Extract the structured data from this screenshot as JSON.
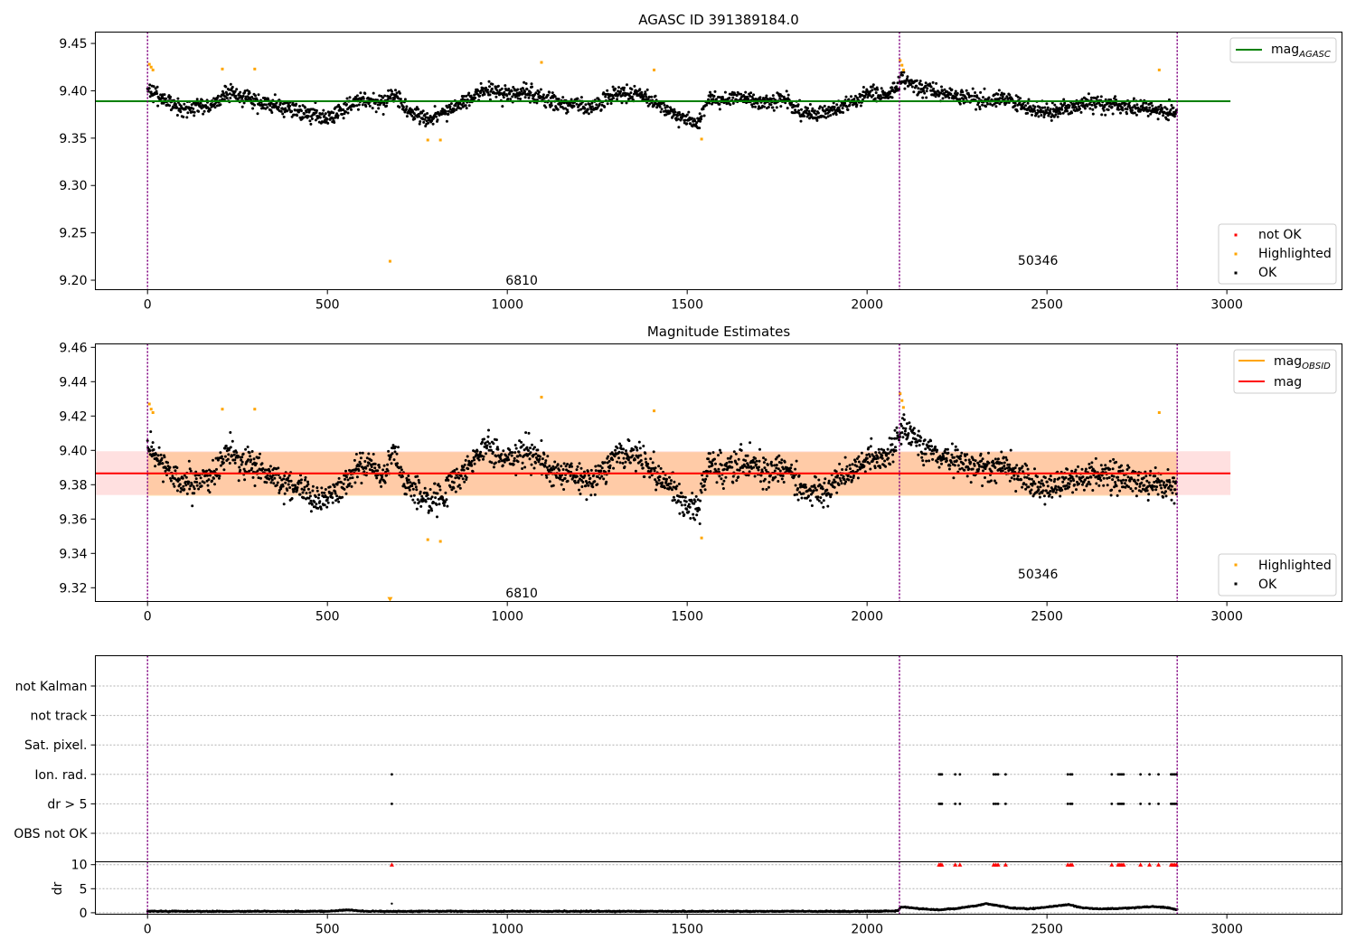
{
  "chart_data": [
    {
      "type": "scatter",
      "title": "AGASC ID 391389184.0",
      "xlabel": "",
      "ylabel": "",
      "xlim": [
        -145,
        3320
      ],
      "ylim": [
        9.19,
        9.462
      ],
      "xticks": [
        0,
        500,
        1000,
        1500,
        2000,
        2500,
        3000
      ],
      "yticks": [
        9.2,
        9.25,
        9.3,
        9.35,
        9.4,
        9.45
      ],
      "ytick_labels": [
        "9.20",
        "9.25",
        "9.30",
        "9.35",
        "9.40",
        "9.45"
      ],
      "grid": false,
      "obs_boundaries": [
        0,
        2090,
        2862
      ],
      "obs_labels": [
        {
          "text": "6810",
          "x": 1040,
          "y": 9.2
        },
        {
          "text": "50346",
          "x": 2475,
          "y": 9.221
        }
      ],
      "lines": [
        {
          "name": "mag_AGASC",
          "label": "mag",
          "label_sub": "AGASC",
          "y": 9.389,
          "x": [
            -145,
            3010
          ],
          "color": "#008000"
        }
      ],
      "series": [
        {
          "name": "not OK",
          "color": "#ff0000",
          "x": [],
          "y": []
        },
        {
          "name": "Highlighted",
          "color": "#ffa500",
          "x": [
            5,
            10,
            15,
            208,
            298,
            674,
            779,
            814,
            1095,
            1408,
            1540,
            2092,
            2097,
            2101,
            2812
          ],
          "y": [
            9.428,
            9.425,
            9.422,
            9.423,
            9.423,
            9.22,
            9.348,
            9.348,
            9.43,
            9.422,
            9.349,
            9.432,
            9.427,
            9.422,
            9.422
          ]
        },
        {
          "name": "OK",
          "color": "#000000",
          "x": [
            0,
            40,
            100,
            180,
            220,
            260,
            300,
            360,
            420,
            480,
            500,
            550,
            600,
            660,
            680,
            720,
            780,
            820,
            880,
            940,
            1000,
            1060,
            1120,
            1180,
            1240,
            1300,
            1360,
            1420,
            1480,
            1530,
            1560,
            1600,
            1660,
            1720,
            1780,
            1820,
            1880,
            1940,
            2000,
            2060,
            2095,
            2140,
            2200,
            2260,
            2320,
            2380,
            2440,
            2500,
            2560,
            2620,
            2680,
            2740,
            2800,
            2860
          ],
          "y": [
            9.4,
            9.393,
            9.38,
            9.385,
            9.398,
            9.393,
            9.39,
            9.384,
            9.378,
            9.372,
            9.371,
            9.381,
            9.392,
            9.385,
            9.398,
            9.38,
            9.37,
            9.376,
            9.388,
            9.401,
            9.396,
            9.399,
            9.388,
            9.386,
            9.382,
            9.397,
            9.398,
            9.385,
            9.371,
            9.366,
            9.393,
            9.389,
            9.393,
            9.388,
            9.39,
            9.376,
            9.376,
            9.385,
            9.396,
            9.396,
            9.412,
            9.405,
            9.398,
            9.393,
            9.39,
            9.392,
            9.383,
            9.377,
            9.382,
            9.387,
            9.386,
            9.383,
            9.38,
            9.378
          ]
        }
      ],
      "legend_top": {
        "placement": "top-right",
        "entries": [
          {
            "label": "mag",
            "label_sub": "AGASC",
            "color": "#008000"
          }
        ]
      },
      "legend_bottom": {
        "placement": "bottom-right",
        "entries": [
          {
            "label": "not OK",
            "color": "#ff0000"
          },
          {
            "label": "Highlighted",
            "color": "#ffa500"
          },
          {
            "label": "OK",
            "color": "#000000"
          }
        ]
      }
    },
    {
      "type": "scatter",
      "title": "Magnitude Estimates",
      "xlabel": "",
      "ylabel": "",
      "xlim": [
        -145,
        3320
      ],
      "ylim": [
        9.312,
        9.462
      ],
      "xticks": [
        0,
        500,
        1000,
        1500,
        2000,
        2500,
        3000
      ],
      "yticks": [
        9.32,
        9.34,
        9.36,
        9.38,
        9.4,
        9.42,
        9.44,
        9.46
      ],
      "ytick_labels": [
        "9.32",
        "9.34",
        "9.36",
        "9.38",
        "9.40",
        "9.42",
        "9.44",
        "9.46"
      ],
      "grid": false,
      "obs_boundaries": [
        0,
        2090,
        2862
      ],
      "obs_labels": [
        {
          "text": "6810",
          "x": 1040,
          "y": 9.317
        },
        {
          "text": "50346",
          "x": 2475,
          "y": 9.328
        }
      ],
      "bands": [
        {
          "name": "mag_OBSID band",
          "x": [
            0,
            2090
          ],
          "y": [
            9.3735,
            9.399
          ],
          "color": "#ffa500",
          "opacity": 0.25
        },
        {
          "name": "mag_OBSID band 2",
          "x": [
            2090,
            2862
          ],
          "y": [
            9.3735,
            9.399
          ],
          "color": "#ffa500",
          "opacity": 0.25
        },
        {
          "name": "mag band",
          "x": [
            -145,
            3010
          ],
          "y": [
            9.374,
            9.3995
          ],
          "color": "#ff0000",
          "opacity": 0.12
        }
      ],
      "lines": [
        {
          "name": "mag_OBSID",
          "label": "mag",
          "label_sub": "OBSID",
          "y": 9.3865,
          "x": [
            0,
            2862
          ],
          "color": "#ffa500"
        },
        {
          "name": "mag",
          "label": "mag",
          "y": 9.3866,
          "x": [
            -145,
            3010
          ],
          "color": "#ff0000"
        }
      ],
      "series": [
        {
          "name": "Highlighted",
          "color": "#ffa500",
          "x": [
            5,
            10,
            15,
            208,
            298,
            779,
            814,
            1095,
            1408,
            1540,
            2092,
            2097,
            2101,
            2812
          ],
          "y": [
            9.427,
            9.424,
            9.422,
            9.424,
            9.424,
            9.348,
            9.347,
            9.431,
            9.423,
            9.349,
            9.433,
            9.429,
            9.425,
            9.422
          ]
        },
        {
          "name": "Highlighted (below range)",
          "color": "#ffa500",
          "marker": "triangle-down",
          "x": [
            674
          ],
          "y": [
            9.313
          ]
        },
        {
          "name": "OK",
          "color": "#000000",
          "x": [
            0,
            40,
            100,
            180,
            220,
            260,
            300,
            360,
            420,
            480,
            500,
            550,
            600,
            660,
            680,
            720,
            780,
            820,
            880,
            940,
            1000,
            1060,
            1120,
            1180,
            1240,
            1300,
            1360,
            1420,
            1480,
            1530,
            1560,
            1600,
            1660,
            1720,
            1780,
            1820,
            1880,
            1940,
            2000,
            2060,
            2095,
            2140,
            2200,
            2260,
            2320,
            2380,
            2440,
            2500,
            2560,
            2620,
            2680,
            2740,
            2800,
            2860
          ],
          "y": [
            9.402,
            9.393,
            9.381,
            9.385,
            9.4,
            9.393,
            9.391,
            9.384,
            9.377,
            9.371,
            9.37,
            9.381,
            9.392,
            9.385,
            9.4,
            9.38,
            9.37,
            9.376,
            9.388,
            9.402,
            9.396,
            9.399,
            9.388,
            9.386,
            9.382,
            9.398,
            9.398,
            9.385,
            9.371,
            9.366,
            9.393,
            9.389,
            9.393,
            9.388,
            9.39,
            9.376,
            9.376,
            9.385,
            9.396,
            9.396,
            9.413,
            9.405,
            9.398,
            9.393,
            9.39,
            9.392,
            9.383,
            9.377,
            9.382,
            9.387,
            9.386,
            9.383,
            9.38,
            9.378
          ]
        }
      ],
      "legend_top": {
        "placement": "top-right",
        "entries": [
          {
            "label": "mag",
            "label_sub": "OBSID",
            "color": "#ffa500"
          },
          {
            "label": "mag",
            "color": "#ff0000"
          }
        ]
      },
      "legend_bottom": {
        "placement": "bottom-right",
        "entries": [
          {
            "label": "Highlighted",
            "color": "#ffa500"
          },
          {
            "label": "OK",
            "color": "#000000"
          }
        ]
      }
    },
    {
      "type": "scatter",
      "title": "",
      "xlabel": "",
      "ylabel": "",
      "xlim": [
        -145,
        3320
      ],
      "categories": [
        "not Kalman",
        "not track",
        "Sat. pixel.",
        "Ion. rad.",
        "dr > 5",
        "OBS not OK"
      ],
      "grid": true,
      "obs_boundaries": [
        0,
        2090,
        2862
      ],
      "flags": [
        {
          "category": "Ion. rad.",
          "x": [
            679,
            2200,
            2204,
            2208,
            2245,
            2258,
            2352,
            2358,
            2364,
            2385,
            2558,
            2565,
            2570,
            2680,
            2698,
            2703,
            2708,
            2713,
            2760,
            2785,
            2810,
            2845,
            2850,
            2855,
            2860
          ]
        },
        {
          "category": "dr > 5",
          "x": [
            679,
            2200,
            2204,
            2208,
            2245,
            2258,
            2352,
            2358,
            2364,
            2385,
            2558,
            2565,
            2570,
            2680,
            2698,
            2703,
            2708,
            2713,
            2760,
            2785,
            2810,
            2845,
            2850,
            2855,
            2860
          ]
        }
      ]
    },
    {
      "type": "line",
      "title": "",
      "xlabel": "",
      "ylabel": "dr",
      "xlim": [
        -145,
        3320
      ],
      "ylim": [
        -0.3,
        10.6
      ],
      "xticks": [
        0,
        500,
        1000,
        1500,
        2000,
        2500,
        3000
      ],
      "yticks": [
        0,
        5,
        10
      ],
      "ytick_labels": [
        "0",
        "5",
        "10"
      ],
      "grid": true,
      "obs_boundaries": [
        0,
        2090,
        2862
      ],
      "series": [
        {
          "name": "dr",
          "color": "#000000",
          "x": [
            0,
            100,
            200,
            300,
            400,
            500,
            560,
            600,
            679,
            700,
            800,
            900,
            1000,
            1100,
            1200,
            1300,
            1400,
            1500,
            1600,
            1700,
            1800,
            1900,
            2000,
            2085,
            2095,
            2150,
            2200,
            2250,
            2300,
            2330,
            2400,
            2450,
            2500,
            2560,
            2600,
            2650,
            2700,
            2750,
            2800,
            2840,
            2862
          ],
          "y": [
            0.3,
            0.3,
            0.3,
            0.3,
            0.3,
            0.3,
            0.6,
            0.3,
            0.3,
            0.3,
            0.3,
            0.3,
            0.3,
            0.3,
            0.3,
            0.3,
            0.3,
            0.3,
            0.3,
            0.3,
            0.3,
            0.3,
            0.3,
            0.4,
            1.2,
            0.8,
            0.6,
            0.9,
            1.4,
            1.9,
            1.0,
            0.8,
            1.2,
            1.7,
            1.0,
            0.8,
            0.9,
            1.1,
            1.3,
            1.0,
            0.6
          ]
        },
        {
          "name": "dr > 10 markers",
          "color": "#ff0000",
          "marker": "triangle-up",
          "x": [
            679,
            2200,
            2204,
            2208,
            2245,
            2258,
            2352,
            2358,
            2364,
            2385,
            2558,
            2565,
            2570,
            2680,
            2698,
            2703,
            2708,
            2713,
            2760,
            2785,
            2810,
            2845,
            2850,
            2855,
            2860
          ],
          "y": [
            10,
            10,
            10,
            10,
            10,
            10,
            10,
            10,
            10,
            10,
            10,
            10,
            10,
            10,
            10,
            10,
            10,
            10,
            10,
            10,
            10,
            10,
            10,
            10,
            10
          ]
        },
        {
          "name": "dr outlier",
          "color": "#000000",
          "x": [
            679
          ],
          "y": [
            1.9
          ]
        }
      ]
    }
  ]
}
